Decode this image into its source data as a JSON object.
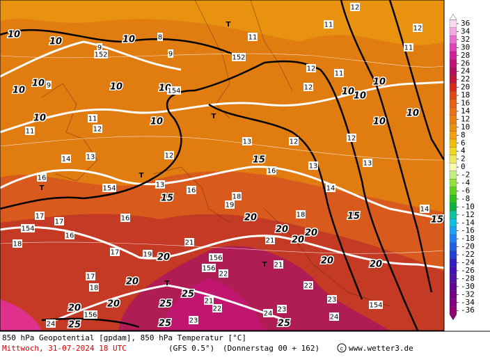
{
  "map": {
    "labels": [
      "10",
      "10",
      "10",
      "10",
      "10",
      "10",
      "10",
      "10",
      "10",
      "10",
      "10",
      "10",
      "10",
      "10",
      "152",
      "152",
      "154",
      "154",
      "154",
      "154",
      "T",
      "T",
      "T",
      "T",
      "T",
      "T",
      "11",
      "11",
      "11",
      "11",
      "11",
      "11",
      "12",
      "12",
      "12",
      "12",
      "12",
      "12",
      "12",
      "12",
      "13",
      "13",
      "13",
      "13",
      "13",
      "14",
      "14",
      "14",
      "15",
      "15",
      "15",
      "15",
      "16",
      "16",
      "16",
      "16",
      "16",
      "17",
      "17",
      "17",
      "17",
      "18",
      "18",
      "18",
      "18",
      "19",
      "19",
      "20",
      "20",
      "20",
      "20",
      "20",
      "20",
      "20",
      "20",
      "20",
      "20",
      "21",
      "21",
      "21",
      "21",
      "22",
      "22",
      "22",
      "23",
      "23",
      "23",
      "24",
      "24",
      "24",
      "25",
      "25",
      "25",
      "25",
      "25",
      "156",
      "156",
      "156",
      "8",
      "9",
      "9",
      "9"
    ]
  },
  "legend": {
    "ticks": [
      36,
      34,
      32,
      30,
      28,
      26,
      24,
      22,
      20,
      18,
      16,
      14,
      12,
      10,
      8,
      6,
      4,
      2,
      0,
      -2,
      -4,
      -6,
      -8,
      -10,
      -12,
      -14,
      -16,
      -18,
      -20,
      -22,
      -24,
      -26,
      -28,
      -30,
      -32,
      -34,
      -36
    ]
  },
  "footer": {
    "line1": "850 hPa Geopotential [gpdam], 850 hPa Temperatur [°C]",
    "date": "Mittwoch, 31-07-2024  18 UTC",
    "model": "(GFS 0.5°)",
    "run": "(Donnerstag 00 + 162)",
    "site": "www.wetter3.de"
  }
}
